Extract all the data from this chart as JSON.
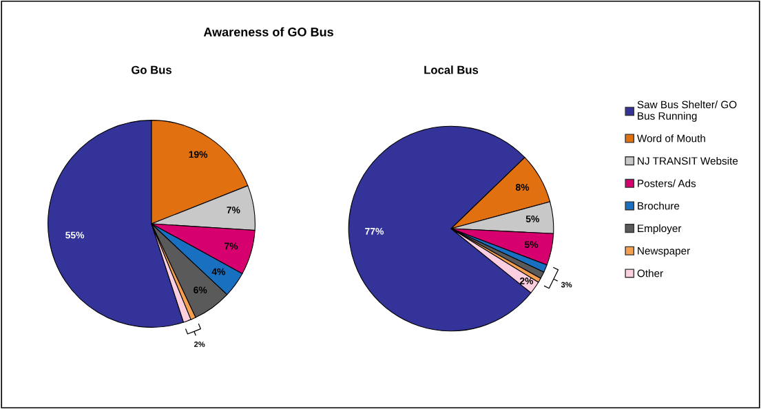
{
  "chart_data": [
    {
      "type": "pie",
      "title": "Awareness of GO Bus",
      "subtitle": "Go Bus",
      "categories": [
        "Saw Bus Shelter/ GO Bus Running",
        "Word of Mouth",
        "NJ TRANSIT Website",
        "Posters/ Ads",
        "Brochure",
        "Employer",
        "Newspaper",
        "Other"
      ],
      "values": [
        55,
        19,
        7,
        7,
        4,
        6,
        0.8,
        1.2
      ],
      "value_labels": [
        "55%",
        "19%",
        "7%",
        "7%",
        "4%",
        "6%",
        null,
        null
      ],
      "colors": [
        "#33339a",
        "#e07010",
        "#c8c8c8",
        "#d6006e",
        "#1a70c0",
        "#5a5a5a",
        "#f5a050",
        "#fccfe0"
      ],
      "annotations": [
        "2%"
      ],
      "legend": "right"
    },
    {
      "type": "pie",
      "title": "Local Bus",
      "categories": [
        null,
        null,
        null,
        null,
        null,
        null,
        null,
        null
      ],
      "values": [
        77,
        8,
        5,
        5,
        1.2,
        1.1,
        0.7,
        2
      ],
      "value_labels": [
        "77%",
        "8%",
        "5%",
        "5%",
        null,
        null,
        null,
        "2%"
      ],
      "colors": [
        "#33339a",
        "#e07010",
        "#c8c8c8",
        "#d6006e",
        "#1a70c0",
        "#5a5a5a",
        "#f5a050",
        "#fccfe0"
      ],
      "annotations": [
        "3%"
      ]
    }
  ]
}
